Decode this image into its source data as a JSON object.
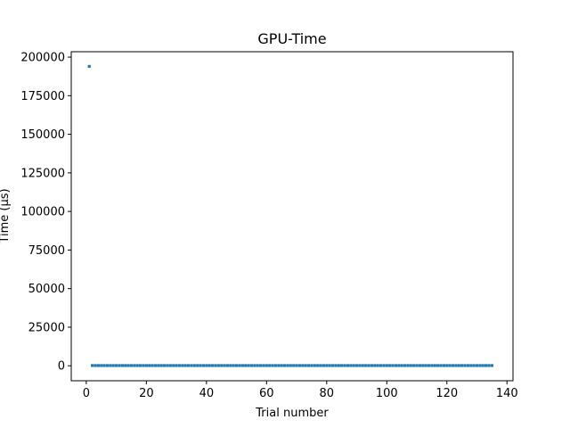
{
  "chart_data": {
    "type": "scatter",
    "title": "GPU-Time",
    "xlabel": "Trial number",
    "ylabel": "Time (µs)",
    "xlim": [
      -5,
      142
    ],
    "ylim": [
      -9700,
      203500
    ],
    "x_ticks": [
      0,
      20,
      40,
      60,
      80,
      100,
      120,
      140
    ],
    "y_ticks": [
      0,
      25000,
      50000,
      75000,
      100000,
      125000,
      150000,
      175000,
      200000
    ],
    "grid": false,
    "legend": false,
    "series": [
      {
        "color": "#1f77b4",
        "points": [
          {
            "x": 1,
            "y": 194000
          },
          {
            "x": 2,
            "y": 150
          },
          {
            "x": 3,
            "y": 150
          },
          {
            "x": 4,
            "y": 150
          },
          {
            "x": 5,
            "y": 150
          },
          {
            "x": 6,
            "y": 150
          },
          {
            "x": 7,
            "y": 150
          },
          {
            "x": 8,
            "y": 150
          },
          {
            "x": 9,
            "y": 150
          },
          {
            "x": 10,
            "y": 150
          },
          {
            "x": 11,
            "y": 150
          },
          {
            "x": 12,
            "y": 150
          },
          {
            "x": 13,
            "y": 150
          },
          {
            "x": 14,
            "y": 150
          },
          {
            "x": 15,
            "y": 150
          },
          {
            "x": 16,
            "y": 150
          },
          {
            "x": 17,
            "y": 150
          },
          {
            "x": 18,
            "y": 150
          },
          {
            "x": 19,
            "y": 150
          },
          {
            "x": 20,
            "y": 150
          },
          {
            "x": 21,
            "y": 150
          },
          {
            "x": 22,
            "y": 150
          },
          {
            "x": 23,
            "y": 150
          },
          {
            "x": 24,
            "y": 150
          },
          {
            "x": 25,
            "y": 150
          },
          {
            "x": 26,
            "y": 150
          },
          {
            "x": 27,
            "y": 150
          },
          {
            "x": 28,
            "y": 150
          },
          {
            "x": 29,
            "y": 150
          },
          {
            "x": 30,
            "y": 150
          },
          {
            "x": 31,
            "y": 150
          },
          {
            "x": 32,
            "y": 150
          },
          {
            "x": 33,
            "y": 150
          },
          {
            "x": 34,
            "y": 150
          },
          {
            "x": 35,
            "y": 150
          },
          {
            "x": 36,
            "y": 150
          },
          {
            "x": 37,
            "y": 150
          },
          {
            "x": 38,
            "y": 150
          },
          {
            "x": 39,
            "y": 150
          },
          {
            "x": 40,
            "y": 150
          },
          {
            "x": 41,
            "y": 150
          },
          {
            "x": 42,
            "y": 150
          },
          {
            "x": 43,
            "y": 150
          },
          {
            "x": 44,
            "y": 150
          },
          {
            "x": 45,
            "y": 150
          },
          {
            "x": 46,
            "y": 150
          },
          {
            "x": 47,
            "y": 150
          },
          {
            "x": 48,
            "y": 150
          },
          {
            "x": 49,
            "y": 150
          },
          {
            "x": 50,
            "y": 150
          },
          {
            "x": 51,
            "y": 150
          },
          {
            "x": 52,
            "y": 150
          },
          {
            "x": 53,
            "y": 150
          },
          {
            "x": 54,
            "y": 150
          },
          {
            "x": 55,
            "y": 150
          },
          {
            "x": 56,
            "y": 150
          },
          {
            "x": 57,
            "y": 150
          },
          {
            "x": 58,
            "y": 150
          },
          {
            "x": 59,
            "y": 150
          },
          {
            "x": 60,
            "y": 150
          },
          {
            "x": 61,
            "y": 150
          },
          {
            "x": 62,
            "y": 150
          },
          {
            "x": 63,
            "y": 150
          },
          {
            "x": 64,
            "y": 150
          },
          {
            "x": 65,
            "y": 150
          },
          {
            "x": 66,
            "y": 150
          },
          {
            "x": 67,
            "y": 150
          },
          {
            "x": 68,
            "y": 150
          },
          {
            "x": 69,
            "y": 150
          },
          {
            "x": 70,
            "y": 150
          },
          {
            "x": 71,
            "y": 150
          },
          {
            "x": 72,
            "y": 150
          },
          {
            "x": 73,
            "y": 150
          },
          {
            "x": 74,
            "y": 150
          },
          {
            "x": 75,
            "y": 150
          },
          {
            "x": 76,
            "y": 150
          },
          {
            "x": 77,
            "y": 150
          },
          {
            "x": 78,
            "y": 150
          },
          {
            "x": 79,
            "y": 150
          },
          {
            "x": 80,
            "y": 150
          },
          {
            "x": 81,
            "y": 150
          },
          {
            "x": 82,
            "y": 150
          },
          {
            "x": 83,
            "y": 150
          },
          {
            "x": 84,
            "y": 150
          },
          {
            "x": 85,
            "y": 150
          },
          {
            "x": 86,
            "y": 150
          },
          {
            "x": 87,
            "y": 150
          },
          {
            "x": 88,
            "y": 150
          },
          {
            "x": 89,
            "y": 150
          },
          {
            "x": 90,
            "y": 150
          },
          {
            "x": 91,
            "y": 150
          },
          {
            "x": 92,
            "y": 150
          },
          {
            "x": 93,
            "y": 150
          },
          {
            "x": 94,
            "y": 150
          },
          {
            "x": 95,
            "y": 150
          },
          {
            "x": 96,
            "y": 150
          },
          {
            "x": 97,
            "y": 150
          },
          {
            "x": 98,
            "y": 150
          },
          {
            "x": 99,
            "y": 150
          },
          {
            "x": 100,
            "y": 150
          },
          {
            "x": 101,
            "y": 150
          },
          {
            "x": 102,
            "y": 150
          },
          {
            "x": 103,
            "y": 150
          },
          {
            "x": 104,
            "y": 150
          },
          {
            "x": 105,
            "y": 150
          },
          {
            "x": 106,
            "y": 150
          },
          {
            "x": 107,
            "y": 150
          },
          {
            "x": 108,
            "y": 150
          },
          {
            "x": 109,
            "y": 150
          },
          {
            "x": 110,
            "y": 150
          },
          {
            "x": 111,
            "y": 150
          },
          {
            "x": 112,
            "y": 150
          },
          {
            "x": 113,
            "y": 150
          },
          {
            "x": 114,
            "y": 150
          },
          {
            "x": 115,
            "y": 150
          },
          {
            "x": 116,
            "y": 150
          },
          {
            "x": 117,
            "y": 150
          },
          {
            "x": 118,
            "y": 150
          },
          {
            "x": 119,
            "y": 150
          },
          {
            "x": 120,
            "y": 150
          },
          {
            "x": 121,
            "y": 150
          },
          {
            "x": 122,
            "y": 150
          },
          {
            "x": 123,
            "y": 150
          },
          {
            "x": 124,
            "y": 150
          },
          {
            "x": 125,
            "y": 150
          },
          {
            "x": 126,
            "y": 150
          },
          {
            "x": 127,
            "y": 150
          },
          {
            "x": 128,
            "y": 150
          },
          {
            "x": 129,
            "y": 150
          },
          {
            "x": 130,
            "y": 150
          },
          {
            "x": 131,
            "y": 150
          },
          {
            "x": 132,
            "y": 150
          },
          {
            "x": 133,
            "y": 150
          },
          {
            "x": 134,
            "y": 150
          },
          {
            "x": 135,
            "y": 150
          }
        ]
      }
    ]
  }
}
